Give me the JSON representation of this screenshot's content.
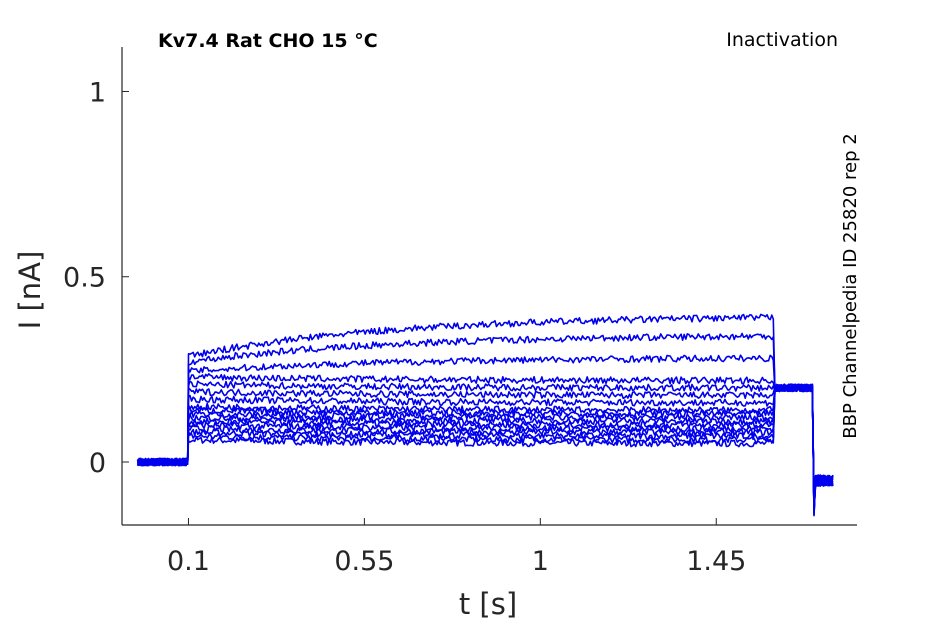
{
  "chart_data": {
    "type": "line",
    "title": "Kv7.4  Rat  CHO  15 °C",
    "protocol": "Inactivation",
    "side_label": "BBP Channelpedia ID 25820 rep 2",
    "xlabel": "t [s]",
    "ylabel": "I [nA]",
    "xlim": [
      -0.07,
      1.81
    ],
    "ylim": [
      -0.17,
      1.12
    ],
    "x_ticks": [
      0.1,
      0.55,
      1,
      1.45
    ],
    "x_tick_labels": [
      "0.1",
      "0.55",
      "1",
      "1.45"
    ],
    "y_ticks": [
      0,
      0.5,
      1
    ],
    "y_tick_labels": [
      "0",
      "0.5",
      "1"
    ],
    "grid": false,
    "line_color": "#0000ee",
    "trace_time_ranges": {
      "baseline": [
        -0.03,
        0.1
      ],
      "step": [
        0.1,
        1.6
      ],
      "tail": [
        1.6,
        1.7
      ],
      "return": [
        1.7,
        1.75
      ]
    },
    "series_step_start": [
      0.06,
      0.07,
      0.08,
      0.09,
      0.1,
      0.11,
      0.12,
      0.13,
      0.14,
      0.15,
      0.17,
      0.19,
      0.21,
      0.23,
      0.245,
      0.27,
      0.285
    ],
    "series_step_end": [
      0.05,
      0.06,
      0.07,
      0.08,
      0.09,
      0.1,
      0.11,
      0.12,
      0.13,
      0.14,
      0.16,
      0.18,
      0.2,
      0.22,
      0.28,
      0.34,
      0.39
    ],
    "tail_level": 0.2,
    "return_level": -0.05
  }
}
